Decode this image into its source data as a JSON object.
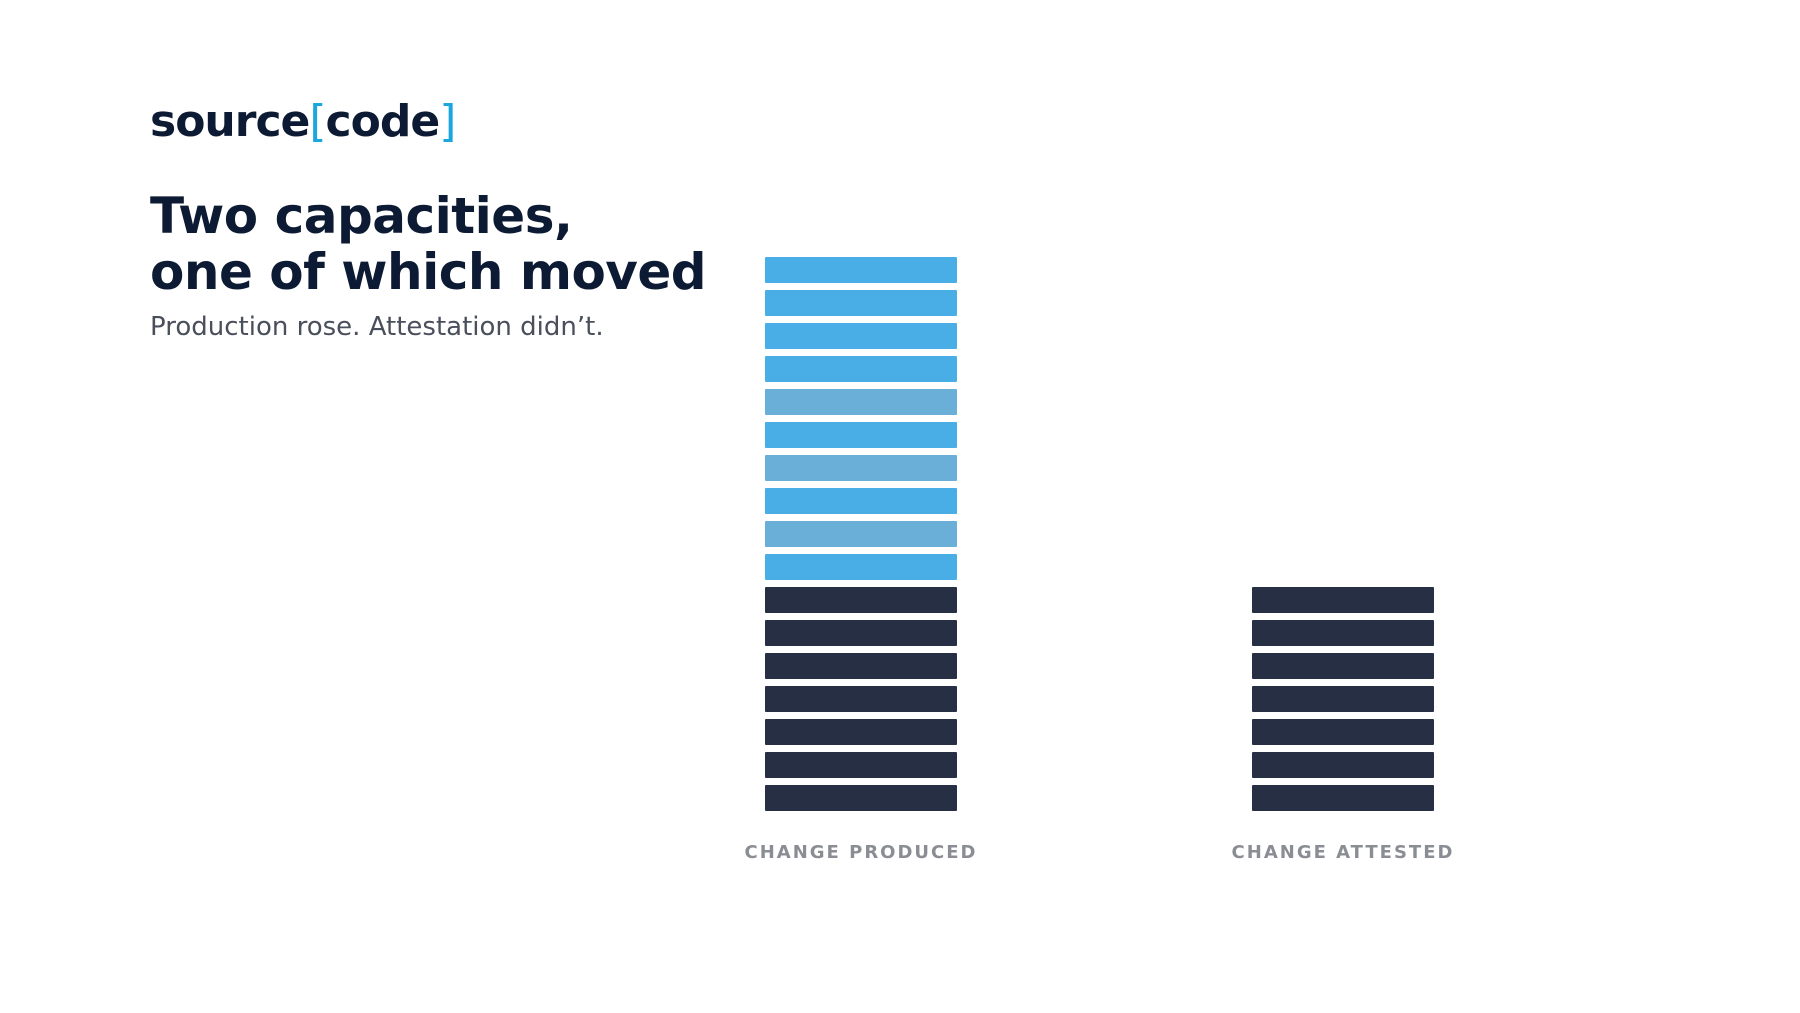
{
  "brand": {
    "logo_word1": "source",
    "logo_bracket_open": "[",
    "logo_word2": "code",
    "logo_bracket_close": "]",
    "accent_color": "#1aa7e0",
    "text_color": "#0d1a33"
  },
  "headline": {
    "line1": "Two capacities,",
    "line2": "one of which moved"
  },
  "subtitle": "Production rose. Attestation didn’t.",
  "chart_data": {
    "type": "bar",
    "title": "",
    "xlabel": "",
    "ylabel": "",
    "categories": [
      "CHANGE PRODUCED",
      "CHANGE ATTESTED"
    ],
    "series": [
      {
        "values": [
          7,
          7
        ],
        "color": "#262f44"
      },
      {
        "values": [
          10,
          0
        ],
        "color": "#4aaee6"
      }
    ],
    "grid": false,
    "unit_note": "stacked unit blocks"
  }
}
